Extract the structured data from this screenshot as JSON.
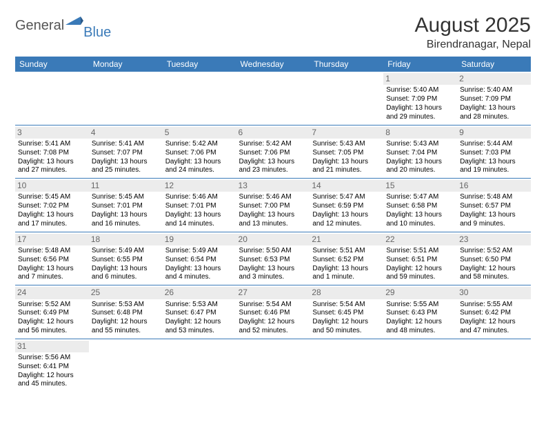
{
  "logo": {
    "text1": "General",
    "text2": "Blue"
  },
  "title": "August 2025",
  "location": "Birendranagar, Nepal",
  "colors": {
    "header_bg": "#3a7ab8",
    "header_text": "#ffffff",
    "daynum_bg": "#ececec",
    "daynum_text": "#666666",
    "border": "#3a7ab8",
    "page_bg": "#ffffff"
  },
  "day_headers": [
    "Sunday",
    "Monday",
    "Tuesday",
    "Wednesday",
    "Thursday",
    "Friday",
    "Saturday"
  ],
  "weeks": [
    [
      null,
      null,
      null,
      null,
      null,
      {
        "n": "1",
        "sr": "5:40 AM",
        "ss": "7:09 PM",
        "dl": "13 hours and 29 minutes."
      },
      {
        "n": "2",
        "sr": "5:40 AM",
        "ss": "7:09 PM",
        "dl": "13 hours and 28 minutes."
      }
    ],
    [
      {
        "n": "3",
        "sr": "5:41 AM",
        "ss": "7:08 PM",
        "dl": "13 hours and 27 minutes."
      },
      {
        "n": "4",
        "sr": "5:41 AM",
        "ss": "7:07 PM",
        "dl": "13 hours and 25 minutes."
      },
      {
        "n": "5",
        "sr": "5:42 AM",
        "ss": "7:06 PM",
        "dl": "13 hours and 24 minutes."
      },
      {
        "n": "6",
        "sr": "5:42 AM",
        "ss": "7:06 PM",
        "dl": "13 hours and 23 minutes."
      },
      {
        "n": "7",
        "sr": "5:43 AM",
        "ss": "7:05 PM",
        "dl": "13 hours and 21 minutes."
      },
      {
        "n": "8",
        "sr": "5:43 AM",
        "ss": "7:04 PM",
        "dl": "13 hours and 20 minutes."
      },
      {
        "n": "9",
        "sr": "5:44 AM",
        "ss": "7:03 PM",
        "dl": "13 hours and 19 minutes."
      }
    ],
    [
      {
        "n": "10",
        "sr": "5:45 AM",
        "ss": "7:02 PM",
        "dl": "13 hours and 17 minutes."
      },
      {
        "n": "11",
        "sr": "5:45 AM",
        "ss": "7:01 PM",
        "dl": "13 hours and 16 minutes."
      },
      {
        "n": "12",
        "sr": "5:46 AM",
        "ss": "7:01 PM",
        "dl": "13 hours and 14 minutes."
      },
      {
        "n": "13",
        "sr": "5:46 AM",
        "ss": "7:00 PM",
        "dl": "13 hours and 13 minutes."
      },
      {
        "n": "14",
        "sr": "5:47 AM",
        "ss": "6:59 PM",
        "dl": "13 hours and 12 minutes."
      },
      {
        "n": "15",
        "sr": "5:47 AM",
        "ss": "6:58 PM",
        "dl": "13 hours and 10 minutes."
      },
      {
        "n": "16",
        "sr": "5:48 AM",
        "ss": "6:57 PM",
        "dl": "13 hours and 9 minutes."
      }
    ],
    [
      {
        "n": "17",
        "sr": "5:48 AM",
        "ss": "6:56 PM",
        "dl": "13 hours and 7 minutes."
      },
      {
        "n": "18",
        "sr": "5:49 AM",
        "ss": "6:55 PM",
        "dl": "13 hours and 6 minutes."
      },
      {
        "n": "19",
        "sr": "5:49 AM",
        "ss": "6:54 PM",
        "dl": "13 hours and 4 minutes."
      },
      {
        "n": "20",
        "sr": "5:50 AM",
        "ss": "6:53 PM",
        "dl": "13 hours and 3 minutes."
      },
      {
        "n": "21",
        "sr": "5:51 AM",
        "ss": "6:52 PM",
        "dl": "13 hours and 1 minute."
      },
      {
        "n": "22",
        "sr": "5:51 AM",
        "ss": "6:51 PM",
        "dl": "12 hours and 59 minutes."
      },
      {
        "n": "23",
        "sr": "5:52 AM",
        "ss": "6:50 PM",
        "dl": "12 hours and 58 minutes."
      }
    ],
    [
      {
        "n": "24",
        "sr": "5:52 AM",
        "ss": "6:49 PM",
        "dl": "12 hours and 56 minutes."
      },
      {
        "n": "25",
        "sr": "5:53 AM",
        "ss": "6:48 PM",
        "dl": "12 hours and 55 minutes."
      },
      {
        "n": "26",
        "sr": "5:53 AM",
        "ss": "6:47 PM",
        "dl": "12 hours and 53 minutes."
      },
      {
        "n": "27",
        "sr": "5:54 AM",
        "ss": "6:46 PM",
        "dl": "12 hours and 52 minutes."
      },
      {
        "n": "28",
        "sr": "5:54 AM",
        "ss": "6:45 PM",
        "dl": "12 hours and 50 minutes."
      },
      {
        "n": "29",
        "sr": "5:55 AM",
        "ss": "6:43 PM",
        "dl": "12 hours and 48 minutes."
      },
      {
        "n": "30",
        "sr": "5:55 AM",
        "ss": "6:42 PM",
        "dl": "12 hours and 47 minutes."
      }
    ],
    [
      {
        "n": "31",
        "sr": "5:56 AM",
        "ss": "6:41 PM",
        "dl": "12 hours and 45 minutes."
      },
      null,
      null,
      null,
      null,
      null,
      null
    ]
  ],
  "labels": {
    "sunrise": "Sunrise:",
    "sunset": "Sunset:",
    "daylight": "Daylight:"
  }
}
